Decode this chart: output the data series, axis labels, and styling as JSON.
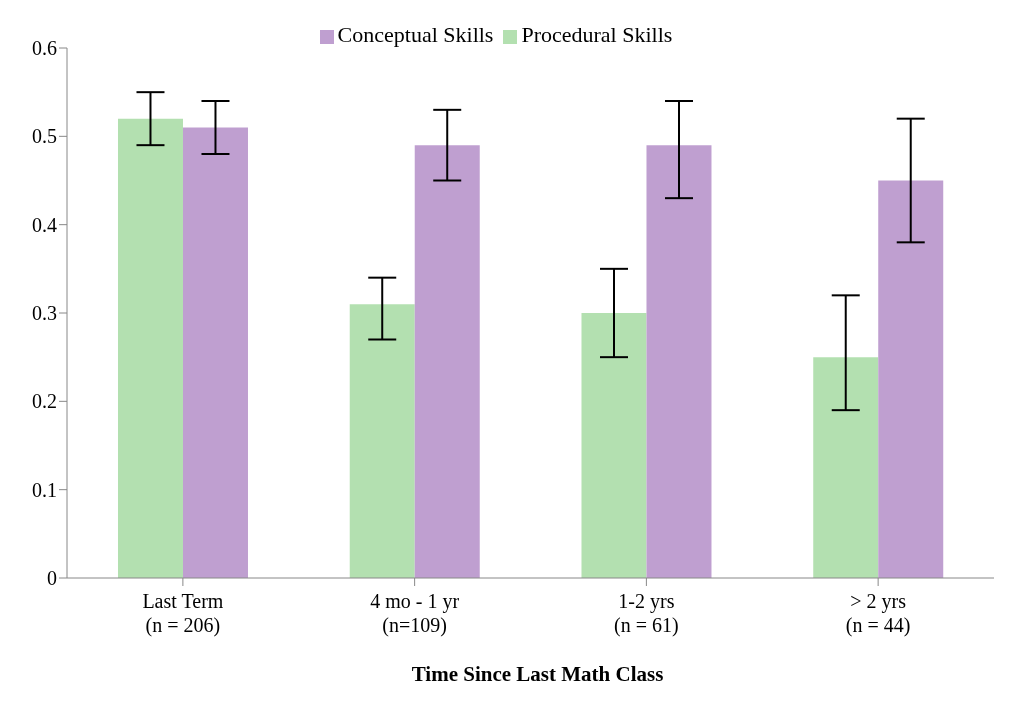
{
  "chart_data": {
    "type": "bar",
    "xlabel": "Time Since Last Math Class",
    "categories": [
      "Last Term\n(n = 206)",
      "4 mo - 1 yr\n(n=109)",
      "1-2 yrs\n(n = 61)",
      "> 2 yrs\n(n = 44)"
    ],
    "series": [
      {
        "name": "Procedural Skills",
        "color": "#b3e0b0",
        "values": [
          0.52,
          0.31,
          0.3,
          0.25
        ],
        "errors": [
          [
            0.49,
            0.55
          ],
          [
            0.27,
            0.34
          ],
          [
            0.25,
            0.35
          ],
          [
            0.19,
            0.32
          ]
        ]
      },
      {
        "name": "Conceptual Skills",
        "color": "#bf9fd0",
        "values": [
          0.51,
          0.49,
          0.49,
          0.45
        ],
        "errors": [
          [
            0.48,
            0.54
          ],
          [
            0.45,
            0.53
          ],
          [
            0.43,
            0.54
          ],
          [
            0.38,
            0.52
          ]
        ]
      }
    ],
    "ylim": [
      0,
      0.6
    ],
    "yticks": [
      0,
      0.1,
      0.2,
      0.3,
      0.4,
      0.5,
      0.6
    ],
    "grid": false,
    "legend": "top"
  }
}
